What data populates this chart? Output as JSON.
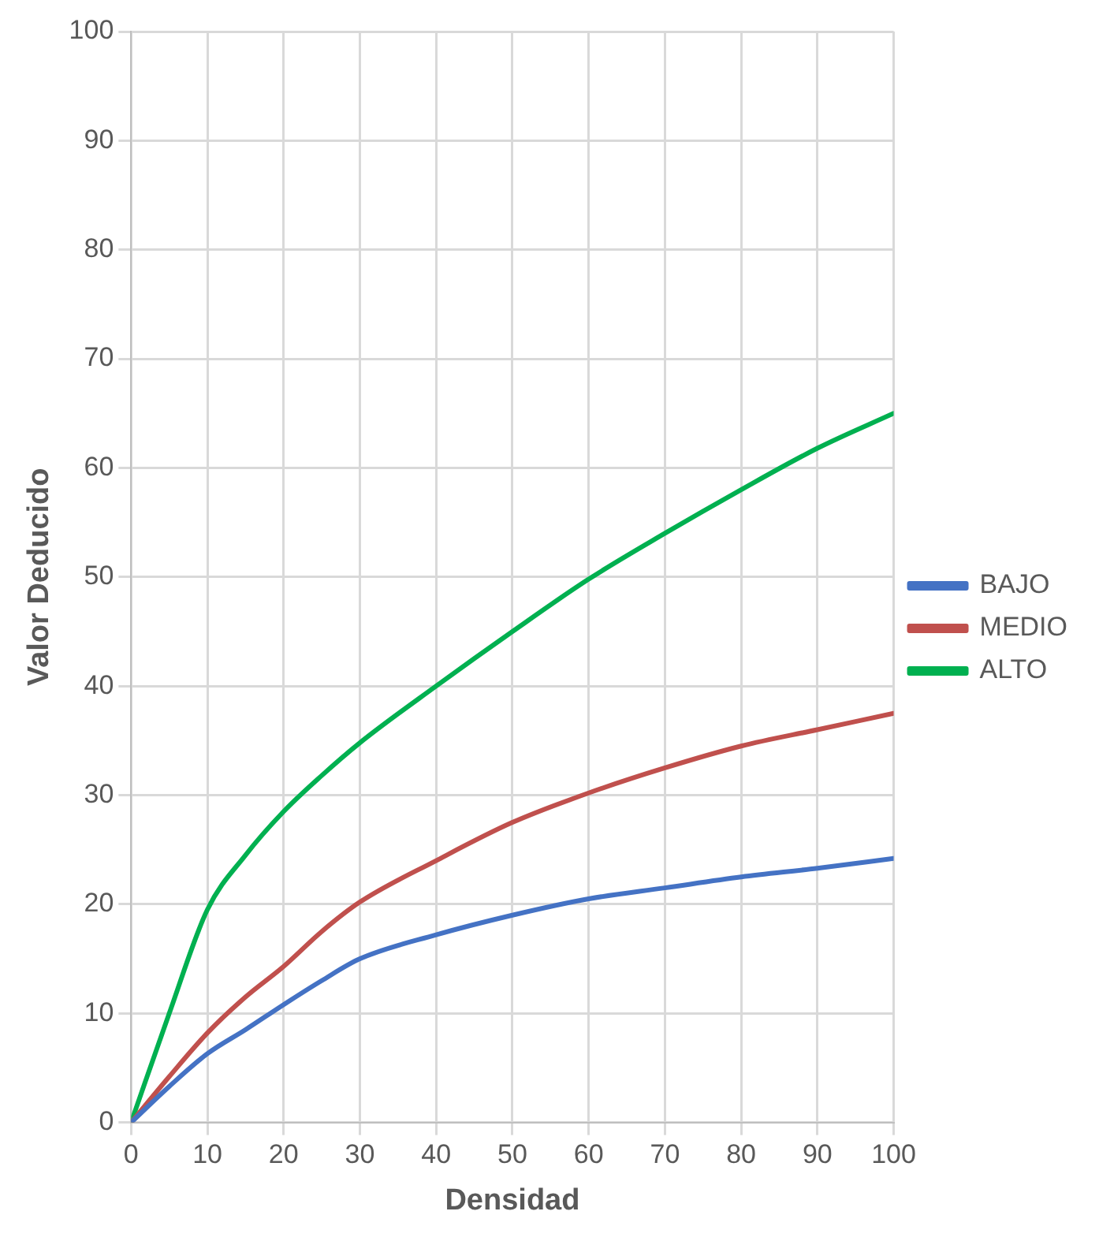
{
  "chart_data": {
    "type": "line",
    "xlabel": "Densidad",
    "ylabel": "Valor Deducido",
    "x": [
      0,
      5,
      10,
      15,
      20,
      25,
      30,
      40,
      50,
      60,
      70,
      80,
      90,
      100
    ],
    "series": [
      {
        "name": "BAJO",
        "color": "#4472c4",
        "values": [
          0,
          3.3,
          6.3,
          8.5,
          10.8,
          13,
          15,
          17.2,
          19,
          20.5,
          21.5,
          22.5,
          23.3,
          24.2
        ]
      },
      {
        "name": "MEDIO",
        "color": "#c0504d",
        "values": [
          0,
          4.2,
          8.2,
          11.5,
          14.3,
          17.5,
          20.2,
          24,
          27.5,
          30.2,
          32.5,
          34.5,
          36,
          37.5
        ]
      },
      {
        "name": "ALTO",
        "color": "#00b050",
        "values": [
          0,
          10,
          19.5,
          24.5,
          28.5,
          31.8,
          34.8,
          40,
          45,
          49.8,
          54,
          58,
          61.8,
          65
        ]
      }
    ],
    "xlim": [
      0,
      100
    ],
    "xticks": [
      0,
      10,
      20,
      30,
      40,
      50,
      60,
      70,
      80,
      90,
      100
    ],
    "ylim": [
      0,
      100
    ],
    "yticks": [
      0,
      10,
      20,
      30,
      40,
      50,
      60,
      70,
      80,
      90,
      100
    ],
    "grid": true,
    "legend": "right",
    "marker": "none",
    "line_style": "solid"
  }
}
